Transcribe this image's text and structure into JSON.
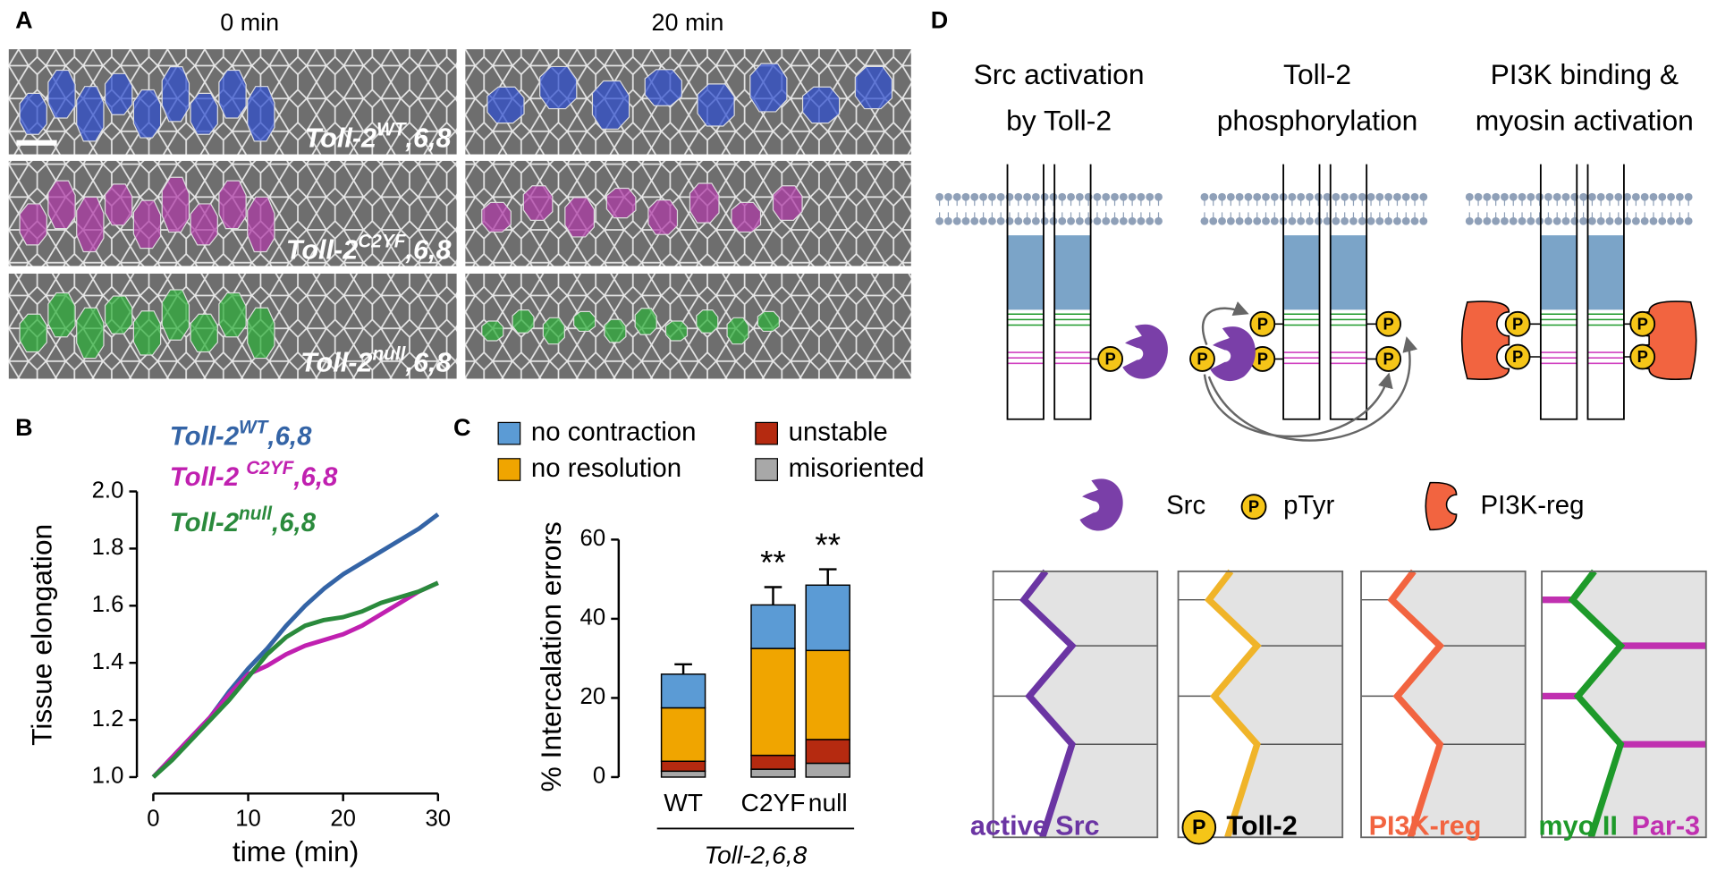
{
  "panel_labels": [
    "A",
    "B",
    "C",
    "D"
  ],
  "panel_A": {
    "time_labels": [
      "0 min",
      "20 min"
    ],
    "genotypes": [
      {
        "base": "Toll-2",
        "sup": "WT",
        "suffix": ",6,8"
      },
      {
        "base": "Toll-2",
        "sup": "C2YF",
        "suffix": ",6,8"
      },
      {
        "base": "Toll-2",
        "sup": "null",
        "suffix": ",6,8"
      }
    ]
  },
  "chart_data": [
    {
      "type": "line",
      "xlabel": "time (min)",
      "ylabel": "Tissue elongation",
      "x": [
        0,
        2,
        4,
        6,
        8,
        10,
        12,
        14,
        16,
        18,
        20,
        22,
        24,
        26,
        28,
        30
      ],
      "series": [
        {
          "name": "Toll-2",
          "name_sup": "WT",
          "name_suffix": ",6,8",
          "color": "#3464a6",
          "values": [
            1.0,
            1.07,
            1.14,
            1.21,
            1.3,
            1.38,
            1.45,
            1.53,
            1.6,
            1.66,
            1.71,
            1.75,
            1.79,
            1.83,
            1.87,
            1.92
          ]
        },
        {
          "name": "Toll-2 ",
          "name_sup": "C2YF",
          "name_suffix": ",6,8",
          "color": "#c020b0",
          "values": [
            1.0,
            1.07,
            1.14,
            1.21,
            1.29,
            1.36,
            1.39,
            1.43,
            1.46,
            1.48,
            1.5,
            1.53,
            1.57,
            1.61,
            1.65,
            1.68
          ]
        },
        {
          "name": "Toll-2",
          "name_sup": "null",
          "name_suffix": ",6,8",
          "color": "#2a8a3c",
          "values": [
            1.0,
            1.06,
            1.13,
            1.2,
            1.27,
            1.35,
            1.43,
            1.49,
            1.53,
            1.55,
            1.56,
            1.58,
            1.61,
            1.63,
            1.65,
            1.68
          ]
        }
      ],
      "xlim": [
        0,
        30
      ],
      "xticks": [
        0,
        10,
        20,
        30
      ],
      "ylim": [
        1,
        2
      ],
      "yticks": [
        {
          "value": 1,
          "label": "1.0"
        },
        {
          "value": 1.2,
          "label": "1.2"
        },
        {
          "value": 1.4,
          "label": "1.4"
        },
        {
          "value": 1.6,
          "label": "1.6"
        },
        {
          "value": 1.8,
          "label": "1.8"
        },
        {
          "value": 2,
          "label": "2.0"
        }
      ]
    },
    {
      "type": "bar",
      "stacked": true,
      "ylabel": "% Intercalation errors",
      "group_label": "Toll-2,6,8",
      "categories": [
        "WT",
        "C2YF",
        "null"
      ],
      "series": [
        {
          "name": "misoriented",
          "color": "#a8a8a8",
          "values": [
            1.5,
            2,
            3.5
          ]
        },
        {
          "name": "unstable",
          "color": "#b52a10",
          "values": [
            2.5,
            3.5,
            6
          ]
        },
        {
          "name": "no resolution",
          "color": "#f0a500",
          "values": [
            13.5,
            27,
            22.5
          ]
        },
        {
          "name": "no contraction",
          "color": "#5b9bd5",
          "values": [
            8.5,
            11,
            16.5
          ]
        }
      ],
      "errors": [
        2.5,
        4.5,
        4
      ],
      "significance": [
        null,
        "**",
        "**"
      ],
      "ylim": [
        0,
        60
      ],
      "yticks": [
        0,
        20,
        40,
        60
      ]
    }
  ],
  "panel_D": {
    "titles": [
      [
        "Src activation",
        "by Toll-2"
      ],
      [
        "Toll-2",
        "phosphorylation"
      ],
      [
        "PI3K binding &",
        "myosin activation"
      ]
    ],
    "p_symbol": "P",
    "legend": [
      "Src",
      "pTyr",
      "PI3K-reg"
    ],
    "bottom_labels": [
      {
        "text": "active Src",
        "color": "#6b35a3"
      },
      {
        "text": "Toll-2",
        "color": "#000000"
      },
      {
        "text": "PI3K-reg",
        "color": "#f26440"
      },
      {
        "text": "myo II",
        "color": "#1e9a2a"
      },
      {
        "text": "Par-3",
        "color": "#c030b0"
      }
    ]
  }
}
